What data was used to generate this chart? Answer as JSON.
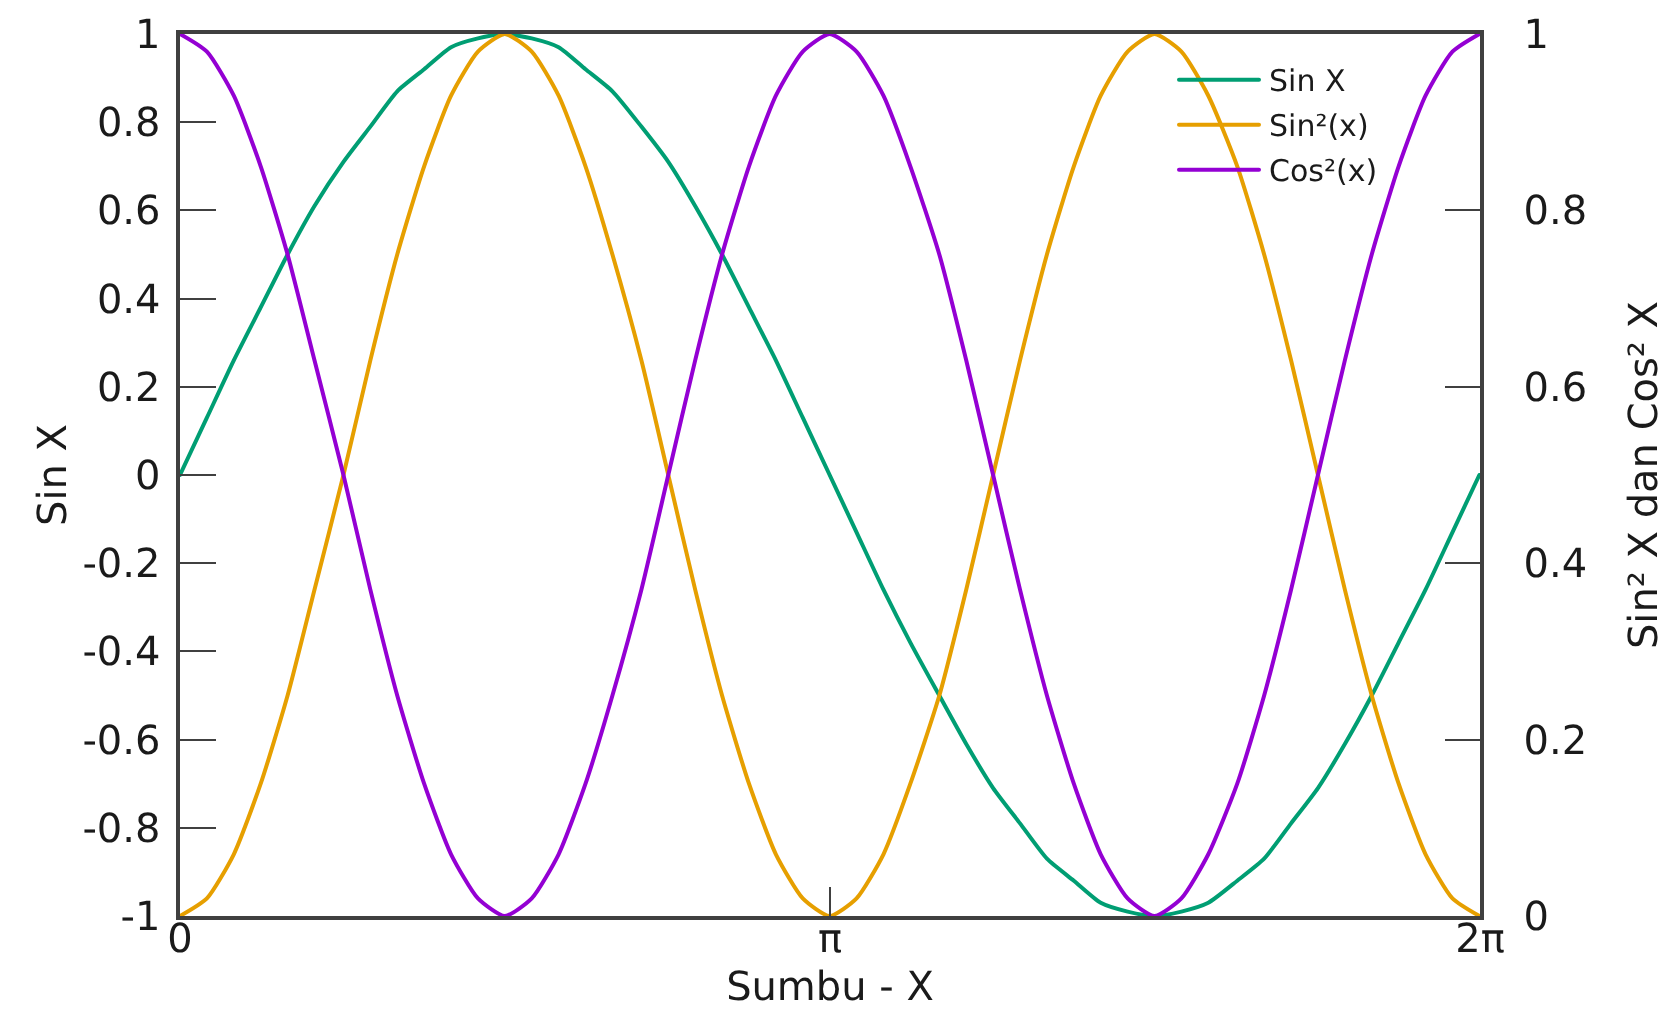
{
  "chart_data": {
    "type": "line",
    "xlabel": "Sumbu - X",
    "ylabel": "Sin X",
    "y2label": "Sin² X dan Cos² X",
    "legend": "top right",
    "x": [
      0,
      0.13,
      0.26,
      0.39,
      0.52,
      0.65,
      0.79,
      0.92,
      1.05,
      1.18,
      1.31,
      1.44,
      1.57,
      1.7,
      1.83,
      1.96,
      2.09,
      2.23,
      2.36,
      2.49,
      2.62,
      2.75,
      2.88,
      3.01,
      3.14,
      3.27,
      3.4,
      3.53,
      3.67,
      3.8,
      3.93,
      4.06,
      4.19,
      4.32,
      4.45,
      4.58,
      4.71,
      4.84,
      4.97,
      5.11,
      5.24,
      5.37,
      5.5,
      5.63,
      5.76,
      5.89,
      6.02,
      6.15,
      6.28
    ],
    "xlim": [
      0,
      6.2832
    ],
    "xticks": [
      0,
      {
        "value": 3.1416,
        "label": "π"
      },
      {
        "value": 6.2832,
        "label": "2π"
      }
    ],
    "ylim": [
      -1,
      1
    ],
    "yticks": [
      -1,
      -0.8,
      -0.6,
      -0.4,
      -0.2,
      0,
      0.2,
      0.4,
      0.6,
      0.8,
      1
    ],
    "y2lim": [
      0,
      1
    ],
    "y2ticks": [
      0,
      0.2,
      0.4,
      0.6,
      0.8,
      1
    ],
    "series": [
      {
        "name": "Sin X",
        "color": "#009e73",
        "values": [
          0,
          0.13,
          0.26,
          0.38,
          0.5,
          0.61,
          0.71,
          0.79,
          0.87,
          0.92,
          0.97,
          0.99,
          1,
          0.99,
          0.97,
          0.92,
          0.87,
          0.79,
          0.71,
          0.61,
          0.5,
          0.38,
          0.26,
          0.13,
          0,
          -0.13,
          -0.26,
          -0.38,
          -0.5,
          -0.61,
          -0.71,
          -0.79,
          -0.87,
          -0.92,
          -0.97,
          -0.99,
          -1,
          -0.99,
          -0.97,
          -0.92,
          -0.87,
          -0.79,
          -0.71,
          -0.61,
          -0.5,
          -0.38,
          -0.26,
          -0.13,
          0
        ]
      },
      {
        "name": "Sin²(x)",
        "color": "#e69f00",
        "axis": "y2",
        "values": [
          0,
          0.02,
          0.07,
          0.15,
          0.25,
          0.37,
          0.5,
          0.63,
          0.75,
          0.85,
          0.93,
          0.98,
          1,
          0.98,
          0.93,
          0.85,
          0.75,
          0.63,
          0.5,
          0.37,
          0.25,
          0.15,
          0.07,
          0.02,
          0,
          0.02,
          0.07,
          0.15,
          0.25,
          0.37,
          0.5,
          0.63,
          0.75,
          0.85,
          0.93,
          0.98,
          1,
          0.98,
          0.93,
          0.85,
          0.75,
          0.63,
          0.5,
          0.37,
          0.25,
          0.15,
          0.07,
          0.02,
          0
        ]
      },
      {
        "name": "Cos²(x)",
        "color": "#9400d3",
        "axis": "y2",
        "values": [
          1,
          0.98,
          0.93,
          0.85,
          0.75,
          0.63,
          0.5,
          0.37,
          0.25,
          0.15,
          0.07,
          0.02,
          0,
          0.02,
          0.07,
          0.15,
          0.25,
          0.37,
          0.5,
          0.63,
          0.75,
          0.85,
          0.93,
          0.98,
          1,
          0.98,
          0.93,
          0.85,
          0.75,
          0.63,
          0.5,
          0.37,
          0.25,
          0.15,
          0.07,
          0.02,
          0,
          0.02,
          0.07,
          0.15,
          0.25,
          0.37,
          0.5,
          0.63,
          0.75,
          0.85,
          0.93,
          0.98,
          1
        ]
      }
    ]
  }
}
